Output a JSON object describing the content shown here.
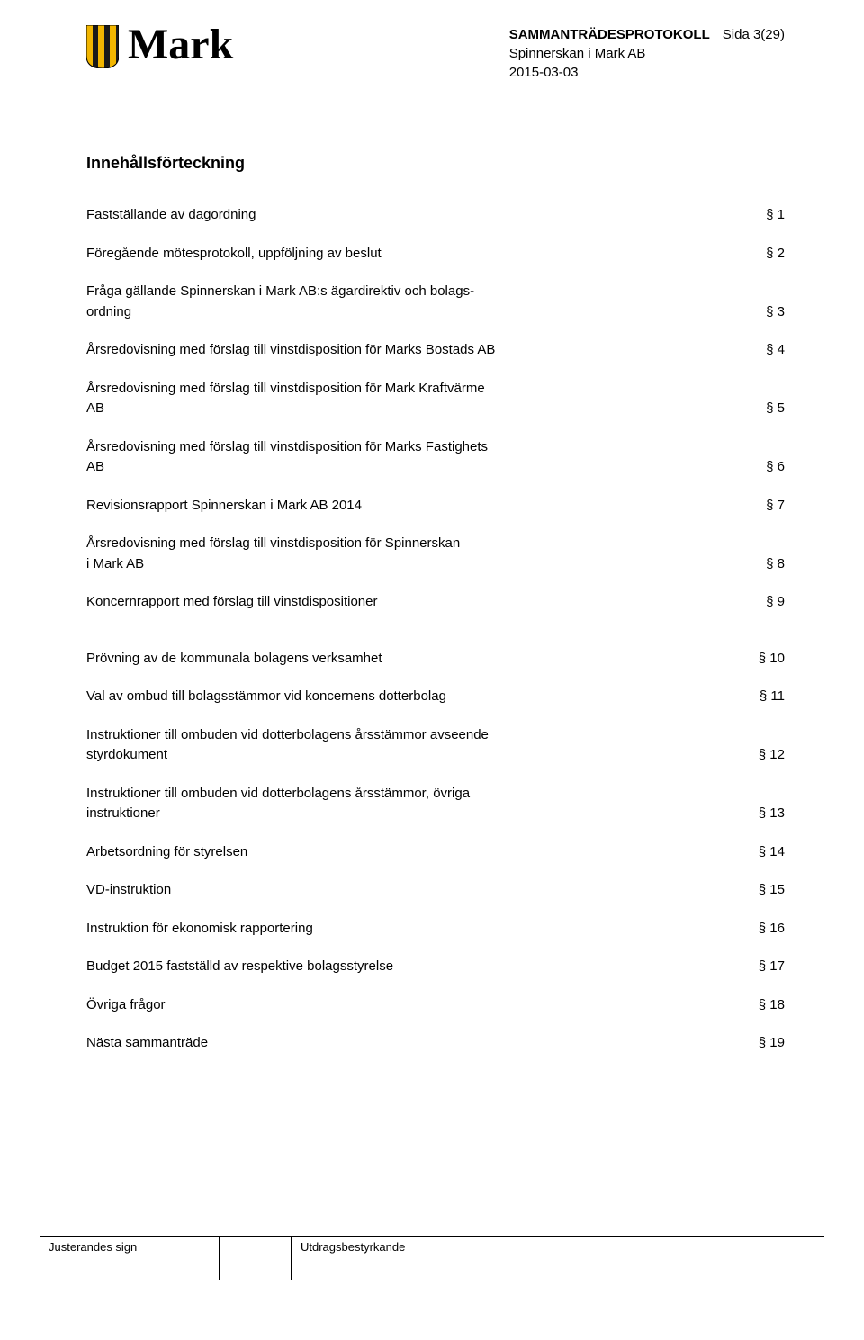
{
  "header": {
    "brand_name": "Mark",
    "protokoll_word": "SAMMANTRÄDESPROTOKOLL",
    "page_word": "Sida",
    "page_num": "3(29)",
    "company": "Spinnerskan i Mark AB",
    "date": "2015-03-03"
  },
  "crest_colors": {
    "stripe": "#f2b600",
    "body": "#1a1a1a"
  },
  "title": "Innehållsförteckning",
  "section_symbol": "§",
  "toc_a": [
    {
      "label": "Fastställande av dagordning",
      "ref": "§ 1"
    },
    {
      "label": "Föregående mötesprotokoll, uppföljning av beslut",
      "ref": "§ 2"
    },
    {
      "label": "Fråga gällande Spinnerskan i Mark AB:s ägardirektiv och bolags-\nordning",
      "ref": "§ 3"
    },
    {
      "label": "Årsredovisning med förslag till vinstdisposition för Marks Bostads AB",
      "ref": "§ 4"
    },
    {
      "label": "Årsredovisning med förslag till vinstdisposition för Mark Kraftvärme\nAB",
      "ref": "§ 5"
    },
    {
      "label": "Årsredovisning med förslag till vinstdisposition för Marks Fastighets\nAB",
      "ref": "§ 6"
    },
    {
      "label": "Revisionsrapport Spinnerskan i Mark AB 2014",
      "ref": "§ 7"
    },
    {
      "label": "Årsredovisning med förslag till vinstdisposition för Spinnerskan\ni Mark AB",
      "ref": "§ 8"
    },
    {
      "label": "Koncernrapport med förslag till vinstdispositioner",
      "ref": "§ 9"
    }
  ],
  "toc_b": [
    {
      "label": "Prövning av de kommunala bolagens verksamhet",
      "ref": "§ 10"
    },
    {
      "label": "Val av ombud till bolagsstämmor vid koncernens dotterbolag",
      "ref": "§ 11"
    },
    {
      "label": "Instruktioner till ombuden vid dotterbolagens årsstämmor avseende\nstyrdokument",
      "ref": "§ 12"
    },
    {
      "label": "Instruktioner till ombuden vid dotterbolagens årsstämmor, övriga\ninstruktioner",
      "ref": "§ 13"
    },
    {
      "label": "Arbetsordning för styrelsen",
      "ref": "§ 14"
    },
    {
      "label": "VD-instruktion",
      "ref": "§ 15"
    },
    {
      "label": "Instruktion för ekonomisk rapportering",
      "ref": "§ 16"
    },
    {
      "label": "Budget 2015 fastställd av respektive bolagsstyrelse",
      "ref": "§ 17"
    },
    {
      "label": "Övriga frågor",
      "ref": "§ 18"
    },
    {
      "label": "Nästa sammanträde",
      "ref": "§ 19"
    }
  ],
  "footer": {
    "sign": "Justerandes sign",
    "utdrag": "Utdragsbestyrkande"
  }
}
